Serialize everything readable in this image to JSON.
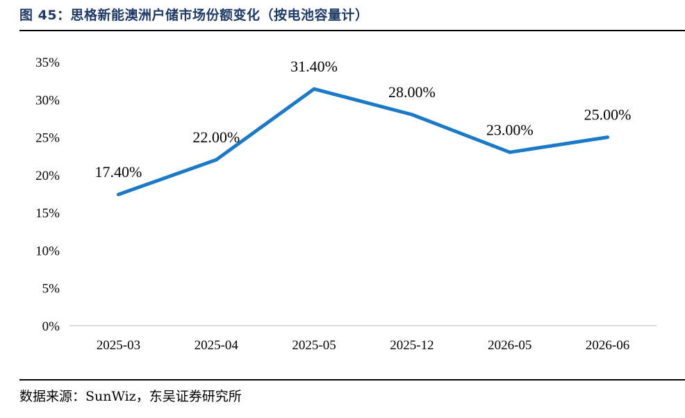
{
  "header": {
    "title": "图 45：思格新能澳洲户储市场份额变化（按电池容量计）"
  },
  "footer": {
    "source": "数据来源：SunWiz，东吴证券研究所"
  },
  "colors": {
    "title": "#1f3a66",
    "series": "#1a7ac8",
    "axis": "#b7b7b7"
  },
  "chart_data": {
    "type": "line",
    "title": "",
    "xlabel": "",
    "ylabel": "",
    "categories": [
      "2025-03",
      "2025-04",
      "2025-05",
      "2025-12",
      "2026-05",
      "2026-06"
    ],
    "series": [
      {
        "values": [
          17.4,
          22.0,
          31.4,
          28.0,
          23.0,
          25.0
        ],
        "labels": [
          "17.40%",
          "22.00%",
          "31.40%",
          "28.00%",
          "23.00%",
          "25.00%"
        ]
      }
    ],
    "ylim": [
      0,
      35
    ],
    "yticks": [
      0,
      5,
      10,
      15,
      20,
      25,
      30,
      35
    ],
    "ytick_labels": [
      "0%",
      "5%",
      "10%",
      "15%",
      "20%",
      "25%",
      "30%",
      "35%"
    ],
    "grid": false,
    "legend": "none"
  }
}
